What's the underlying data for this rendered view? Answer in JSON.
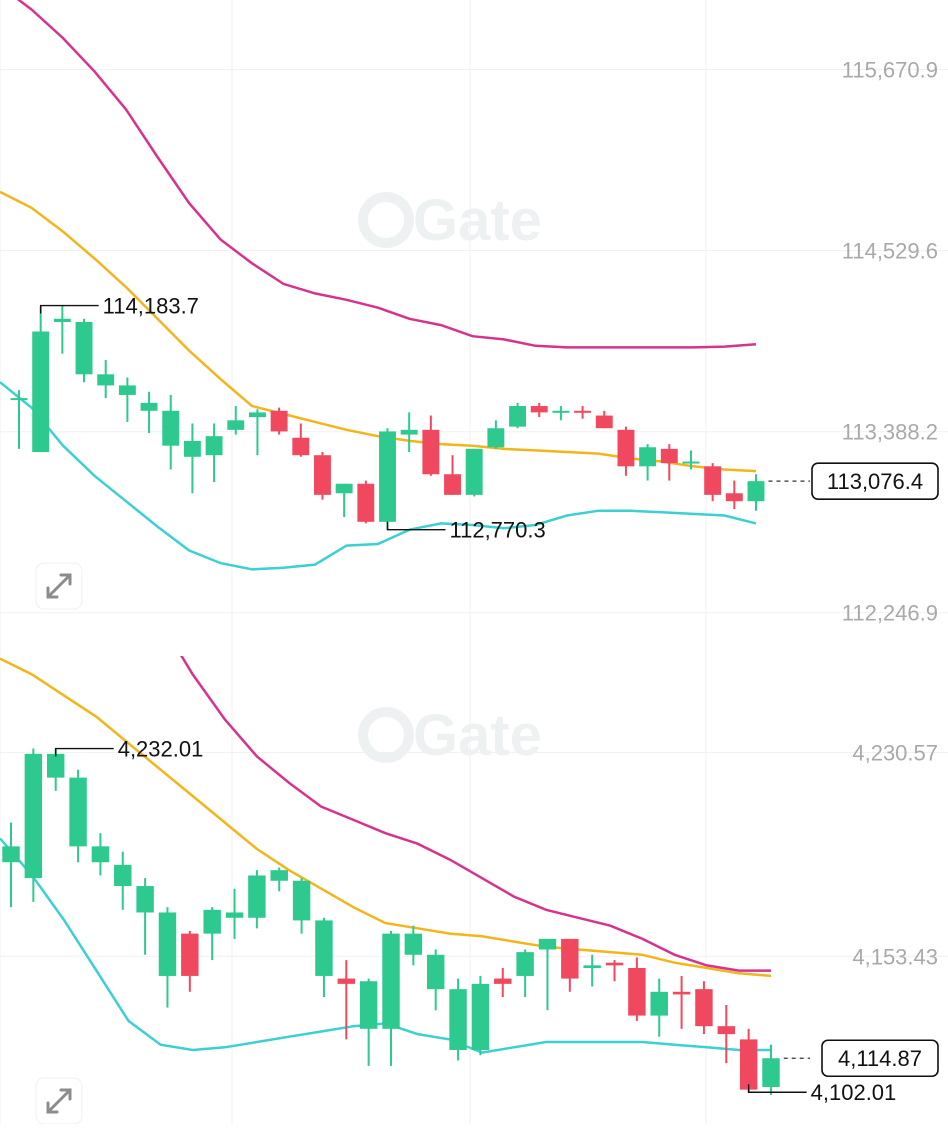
{
  "colors": {
    "up": "#2dc98f",
    "down": "#f0495f",
    "upper_band": "#d6338f",
    "middle_band": "#f2b51a",
    "lower_band": "#3ccfd3",
    "grid": "#f1f1f1",
    "axis_text": "#a9a9a9"
  },
  "watermark": "Gate",
  "expand_icon": "expand-arrows-icon",
  "chart_data": [
    {
      "type": "candlestick",
      "title": "",
      "ylim": [
        111974,
        116110
      ],
      "y_ticks": [
        "115,670.9",
        "114,529.6",
        "113,388.2",
        "112,246.9"
      ],
      "y_tick_values": [
        115670.9,
        114529.6,
        113388.2,
        112246.9
      ],
      "grid": true,
      "candles": [
        {
          "o": 113600,
          "h": 113650,
          "l": 113280,
          "c": 113600
        },
        {
          "o": 113260,
          "h": 114180,
          "l": 113260,
          "c": 114020
        },
        {
          "o": 114080,
          "h": 114184,
          "l": 113880,
          "c": 114100
        },
        {
          "o": 113750,
          "h": 114100,
          "l": 113700,
          "c": 114080
        },
        {
          "o": 113680,
          "h": 113840,
          "l": 113600,
          "c": 113750
        },
        {
          "o": 113620,
          "h": 113730,
          "l": 113450,
          "c": 113680
        },
        {
          "o": 113520,
          "h": 113640,
          "l": 113380,
          "c": 113570
        },
        {
          "o": 113300,
          "h": 113620,
          "l": 113150,
          "c": 113520
        },
        {
          "o": 113230,
          "h": 113440,
          "l": 113000,
          "c": 113330
        },
        {
          "o": 113240,
          "h": 113440,
          "l": 113070,
          "c": 113360
        },
        {
          "o": 113400,
          "h": 113550,
          "l": 113370,
          "c": 113460
        },
        {
          "o": 113480,
          "h": 113530,
          "l": 113240,
          "c": 113510
        },
        {
          "o": 113520,
          "h": 113540,
          "l": 113370,
          "c": 113390
        },
        {
          "o": 113350,
          "h": 113440,
          "l": 113230,
          "c": 113240
        },
        {
          "o": 113240,
          "h": 113260,
          "l": 112960,
          "c": 112990
        },
        {
          "o": 113000,
          "h": 113060,
          "l": 112850,
          "c": 113060
        },
        {
          "o": 113060,
          "h": 113080,
          "l": 112810,
          "c": 112820
        },
        {
          "o": 112820,
          "h": 113410,
          "l": 112770,
          "c": 113390
        },
        {
          "o": 113370,
          "h": 113510,
          "l": 113260,
          "c": 113400
        },
        {
          "o": 113400,
          "h": 113490,
          "l": 113110,
          "c": 113120
        },
        {
          "o": 113120,
          "h": 113240,
          "l": 112990,
          "c": 112990
        },
        {
          "o": 112990,
          "h": 113280,
          "l": 112980,
          "c": 113280
        },
        {
          "o": 113290,
          "h": 113460,
          "l": 113280,
          "c": 113410
        },
        {
          "o": 113420,
          "h": 113570,
          "l": 113410,
          "c": 113550
        },
        {
          "o": 113550,
          "h": 113570,
          "l": 113480,
          "c": 113510
        },
        {
          "o": 113510,
          "h": 113550,
          "l": 113460,
          "c": 113520
        },
        {
          "o": 113520,
          "h": 113550,
          "l": 113470,
          "c": 113510
        },
        {
          "o": 113490,
          "h": 113520,
          "l": 113420,
          "c": 113410
        },
        {
          "o": 113400,
          "h": 113420,
          "l": 113110,
          "c": 113170
        },
        {
          "o": 113170,
          "h": 113310,
          "l": 113080,
          "c": 113290
        },
        {
          "o": 113280,
          "h": 113310,
          "l": 113080,
          "c": 113190
        },
        {
          "o": 113190,
          "h": 113270,
          "l": 113150,
          "c": 113200
        },
        {
          "o": 113170,
          "h": 113190,
          "l": 112950,
          "c": 112990
        },
        {
          "o": 113000,
          "h": 113080,
          "l": 112900,
          "c": 112950
        },
        {
          "o": 112950,
          "h": 113120,
          "l": 112890,
          "c": 113076.4
        }
      ],
      "upper_band": [
        116200,
        116050,
        115870,
        115660,
        115420,
        115120,
        114830,
        114600,
        114450,
        114320,
        114260,
        114220,
        114170,
        114100,
        114060,
        113990,
        113970,
        113930,
        113920,
        113920,
        113920,
        113920,
        113920,
        113925,
        113940
      ],
      "middle_band": [
        114900,
        114800,
        114650,
        114480,
        114300,
        114100,
        113900,
        113720,
        113550,
        113500,
        113450,
        113400,
        113360,
        113330,
        113310,
        113300,
        113280,
        113270,
        113260,
        113250,
        113220,
        113200,
        113170,
        113150,
        113140
      ],
      "lower_band": [
        113700,
        113540,
        113300,
        113110,
        112950,
        112790,
        112640,
        112560,
        112520,
        112530,
        112550,
        112670,
        112680,
        112770,
        112810,
        112800,
        112780,
        112800,
        112860,
        112890,
        112890,
        112880,
        112870,
        112860,
        112810
      ],
      "annotations": [
        {
          "label": "114,183.7",
          "value": 114183.7,
          "candle": 1
        },
        {
          "label": "112,770.3",
          "value": 112770.3,
          "candle": 17
        }
      ],
      "last_price": {
        "label": "113,076.4",
        "value": 113076.4
      }
    },
    {
      "type": "candlestick",
      "title": "",
      "ylim": [
        4090,
        4267
      ],
      "y_ticks": [
        "4,230.57",
        "4,153.43"
      ],
      "y_tick_values": [
        4230.57,
        4153.43
      ],
      "grid": true,
      "candles": [
        {
          "o": 4189,
          "h": 4204,
          "l": 4172,
          "c": 4195
        },
        {
          "o": 4183,
          "h": 4232,
          "l": 4174,
          "c": 4230
        },
        {
          "o": 4221,
          "h": 4232,
          "l": 4216,
          "c": 4230
        },
        {
          "o": 4195,
          "h": 4224,
          "l": 4189,
          "c": 4221
        },
        {
          "o": 4189,
          "h": 4200,
          "l": 4184,
          "c": 4195
        },
        {
          "o": 4180,
          "h": 4193,
          "l": 4171,
          "c": 4188
        },
        {
          "o": 4170,
          "h": 4183,
          "l": 4154,
          "c": 4180
        },
        {
          "o": 4146,
          "h": 4172,
          "l": 4134,
          "c": 4170
        },
        {
          "o": 4162,
          "h": 4163,
          "l": 4140,
          "c": 4146
        },
        {
          "o": 4162,
          "h": 4172,
          "l": 4152,
          "c": 4171
        },
        {
          "o": 4168,
          "h": 4179,
          "l": 4160,
          "c": 4170
        },
        {
          "o": 4168,
          "h": 4186,
          "l": 4164,
          "c": 4184
        },
        {
          "o": 4182,
          "h": 4187,
          "l": 4178,
          "c": 4186
        },
        {
          "o": 4167,
          "h": 4183,
          "l": 4162,
          "c": 4182
        },
        {
          "o": 4146,
          "h": 4168,
          "l": 4138,
          "c": 4167
        },
        {
          "o": 4145,
          "h": 4152,
          "l": 4122,
          "c": 4143
        },
        {
          "o": 4126,
          "h": 4145,
          "l": 4112,
          "c": 4144
        },
        {
          "o": 4126,
          "h": 4163,
          "l": 4112,
          "c": 4162
        },
        {
          "o": 4154,
          "h": 4165,
          "l": 4150,
          "c": 4162
        },
        {
          "o": 4141,
          "h": 4156,
          "l": 4133,
          "c": 4154
        },
        {
          "o": 4118,
          "h": 4145,
          "l": 4114,
          "c": 4141
        },
        {
          "o": 4118,
          "h": 4146,
          "l": 4116,
          "c": 4143
        },
        {
          "o": 4145,
          "h": 4149,
          "l": 4138,
          "c": 4143
        },
        {
          "o": 4146,
          "h": 4156,
          "l": 4138,
          "c": 4155
        },
        {
          "o": 4156,
          "h": 4160,
          "l": 4133,
          "c": 4160
        },
        {
          "o": 4160,
          "h": 4160,
          "l": 4140,
          "c": 4145
        },
        {
          "o": 4149,
          "h": 4154,
          "l": 4142,
          "c": 4150
        },
        {
          "o": 4151,
          "h": 4152,
          "l": 4144,
          "c": 4150
        },
        {
          "o": 4149,
          "h": 4153,
          "l": 4129,
          "c": 4131
        },
        {
          "o": 4131,
          "h": 4145,
          "l": 4123,
          "c": 4140
        },
        {
          "o": 4140,
          "h": 4146,
          "l": 4126,
          "c": 4139
        },
        {
          "o": 4141,
          "h": 4144,
          "l": 4124,
          "c": 4127
        },
        {
          "o": 4127,
          "h": 4135,
          "l": 4113,
          "c": 4124
        },
        {
          "o": 4122,
          "h": 4126,
          "l": 4102,
          "c": 4103
        },
        {
          "o": 4104,
          "h": 4120,
          "l": 4101,
          "c": 4114.87
        }
      ],
      "upper_band": [
        4412,
        4390,
        4360,
        4330,
        4300,
        4280,
        4260,
        4243,
        4229,
        4219,
        4210,
        4205,
        4200,
        4196,
        4190,
        4183,
        4176,
        4171,
        4168,
        4165,
        4160,
        4154,
        4150,
        4148,
        4148
      ],
      "middle_band": [
        4266,
        4260,
        4252,
        4244,
        4234,
        4224,
        4214,
        4204,
        4194,
        4186,
        4179,
        4172,
        4166,
        4164,
        4162,
        4161,
        4159,
        4157,
        4156,
        4155,
        4154,
        4151,
        4149,
        4147,
        4146
      ],
      "lower_band": [
        4198,
        4184,
        4167,
        4148,
        4129,
        4120,
        4118,
        4119,
        4121,
        4123,
        4125,
        4127,
        4128,
        4124,
        4122,
        4117,
        4119,
        4121,
        4121,
        4121,
        4121,
        4120,
        4119,
        4118,
        4118
      ],
      "annotations": [
        {
          "label": "4,232.01",
          "value": 4232.01,
          "candle": 2
        },
        {
          "label": "4,102.01",
          "value": 4102.01,
          "candle": 33
        }
      ],
      "last_price": {
        "label": "4,114.87",
        "value": 4114.87
      }
    }
  ]
}
